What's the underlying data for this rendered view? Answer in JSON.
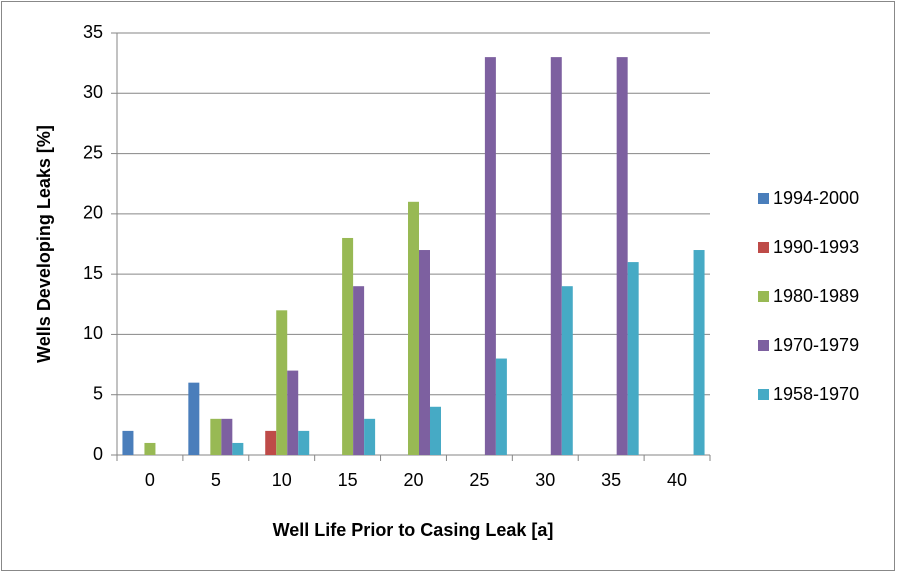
{
  "chart_data": {
    "type": "bar",
    "categories": [
      "0",
      "5",
      "10",
      "15",
      "20",
      "25",
      "30",
      "35",
      "40"
    ],
    "series": [
      {
        "name": "1994-2000",
        "color": "#4a7ebb",
        "values": [
          2,
          6,
          0,
          0,
          0,
          0,
          0,
          0,
          0
        ]
      },
      {
        "name": "1990-1993",
        "color": "#be4b48",
        "values": [
          0,
          0,
          2,
          0,
          0,
          0,
          0,
          0,
          0
        ]
      },
      {
        "name": "1980-1989",
        "color": "#98b954",
        "values": [
          1,
          3,
          12,
          18,
          21,
          0,
          0,
          0,
          0
        ]
      },
      {
        "name": "1970-1979",
        "color": "#7d60a0",
        "values": [
          0,
          3,
          7,
          14,
          17,
          33,
          33,
          33,
          0
        ]
      },
      {
        "name": "1958-1970",
        "color": "#46aac5",
        "values": [
          0,
          1,
          2,
          3,
          4,
          8,
          14,
          16,
          17
        ]
      }
    ],
    "xlabel": "Well Life Prior to Casing Leak [a]",
    "ylabel": "Wells Developing Leaks [%]",
    "ylim": [
      0,
      35
    ],
    "yticks": [
      0,
      5,
      10,
      15,
      20,
      25,
      30,
      35
    ],
    "grid": true,
    "legend": "right"
  }
}
